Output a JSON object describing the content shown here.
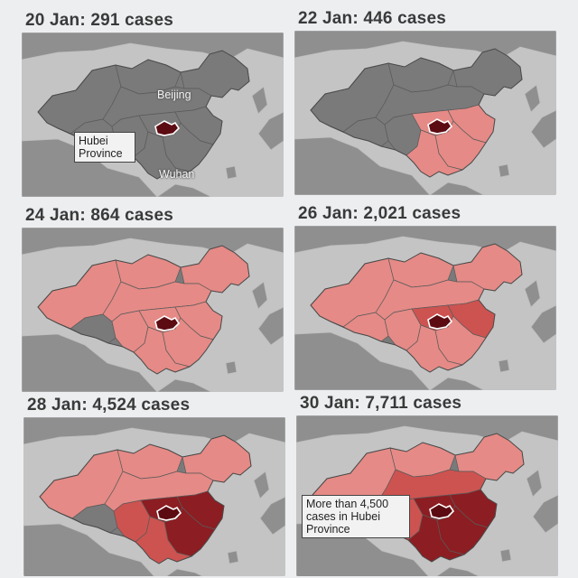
{
  "panels": [
    {
      "title": "20 Jan: 291 cases",
      "level": 0
    },
    {
      "title": "22 Jan: 446 cases",
      "level": 1
    },
    {
      "title": "24 Jan: 864 cases",
      "level": 2
    },
    {
      "title": "26 Jan: 2,021 cases",
      "level": 3
    },
    {
      "title": "28 Jan: 4,524 cases",
      "level": 4
    },
    {
      "title": "30 Jan: 7,711 cases",
      "level": 5
    }
  ],
  "labels": {
    "hubei": "Hubei Province",
    "beijing": "Beijing",
    "wuhan": "Wuhan",
    "hubei_note": "More than 4,500 cases in Hubei Province"
  },
  "colors": {
    "background": "#c4c4c4",
    "neighbour": "#8f8f8f",
    "china_grey": "#7a7a7a",
    "light_case": "#e58a86",
    "medium_case": "#cd5350",
    "dark_case": "#8c1d22",
    "hubei": "#5c0b12"
  }
}
